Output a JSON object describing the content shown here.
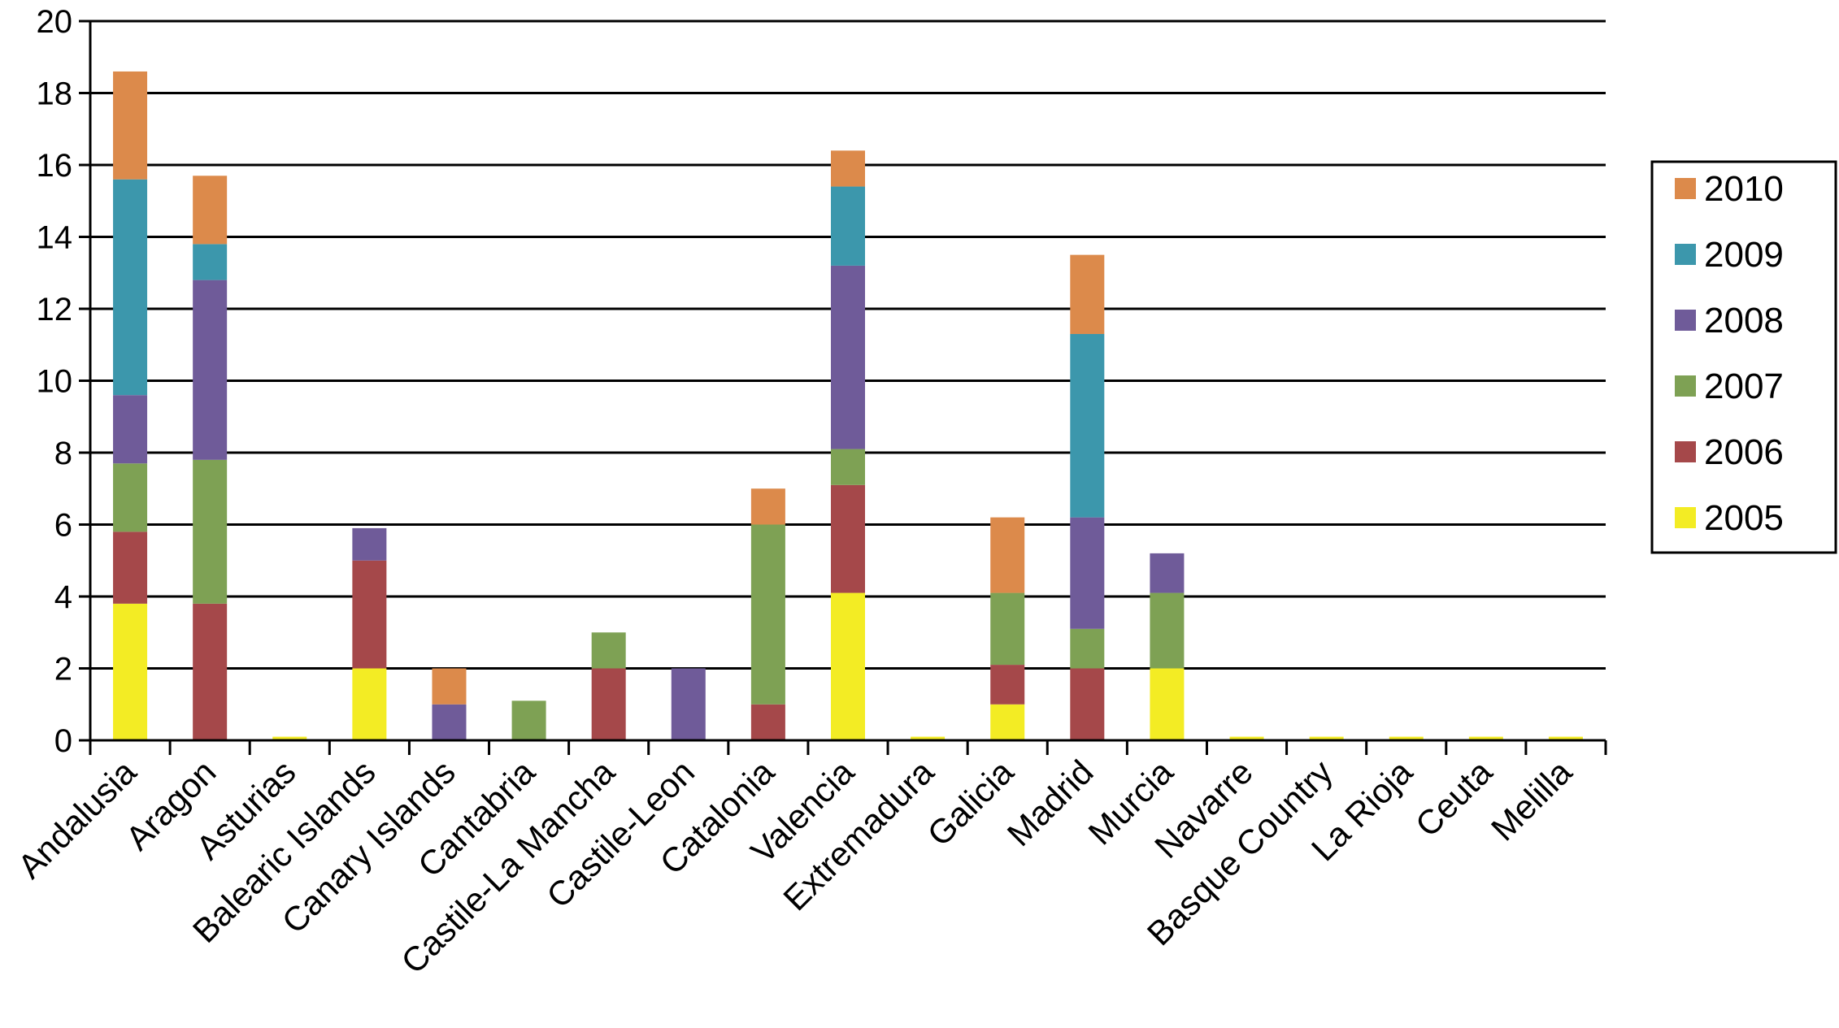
{
  "chart_data": {
    "type": "bar",
    "stacked": true,
    "title": "",
    "xlabel": "",
    "ylabel": "",
    "ylim": [
      0,
      20
    ],
    "yticks": [
      0,
      2,
      4,
      6,
      8,
      10,
      12,
      14,
      16,
      18,
      20
    ],
    "grid": "horizontal",
    "legend_position": "right",
    "categories": [
      "Andalusia",
      "Aragon",
      "Asturias",
      "Balearic Islands",
      "Canary Islands",
      "Cantabria",
      "Castile-La Mancha",
      "Castile-Leon",
      "Catalonia",
      "Valencia",
      "Extremadura",
      "Galicia",
      "Madrid",
      "Murcia",
      "Navarre",
      "Basque Country",
      "La Rioja",
      "Ceuta",
      "Melilla"
    ],
    "series": [
      {
        "name": "2005",
        "color": "#f3ec24",
        "values": [
          3.8,
          0,
          0.1,
          2,
          0,
          0,
          0,
          0,
          0,
          4.1,
          0.1,
          1,
          0,
          2,
          0.1,
          0.1,
          0.1,
          0.1,
          0.1
        ]
      },
      {
        "name": "2006",
        "color": "#a5484a",
        "values": [
          2,
          3.8,
          0,
          3,
          0,
          0,
          2,
          0,
          1,
          3,
          0,
          1.1,
          2,
          0,
          0,
          0,
          0,
          0,
          0
        ]
      },
      {
        "name": "2007",
        "color": "#7ea154",
        "values": [
          1.9,
          4,
          0,
          0,
          0,
          1.1,
          1,
          0,
          5,
          1,
          0,
          2,
          1.1,
          2.1,
          0,
          0,
          0,
          0,
          0
        ]
      },
      {
        "name": "2008",
        "color": "#6f5b99",
        "values": [
          1.9,
          5,
          0,
          0.9,
          1,
          0,
          0,
          2,
          0,
          5.1,
          0,
          0,
          3.1,
          1.1,
          0,
          0,
          0,
          0,
          0
        ]
      },
      {
        "name": "2009",
        "color": "#3c97ac",
        "values": [
          6,
          1,
          0,
          0,
          0,
          0,
          0,
          0,
          0,
          2.2,
          0,
          0,
          5.1,
          0,
          0,
          0,
          0,
          0,
          0
        ]
      },
      {
        "name": "2010",
        "color": "#dc8a4b",
        "values": [
          3,
          1.9,
          0,
          0,
          1,
          0,
          0,
          0,
          1,
          1,
          0,
          2.1,
          2.2,
          0,
          0,
          0,
          0,
          0,
          0
        ]
      }
    ],
    "legend_order": [
      "2010",
      "2009",
      "2008",
      "2007",
      "2006",
      "2005"
    ]
  }
}
